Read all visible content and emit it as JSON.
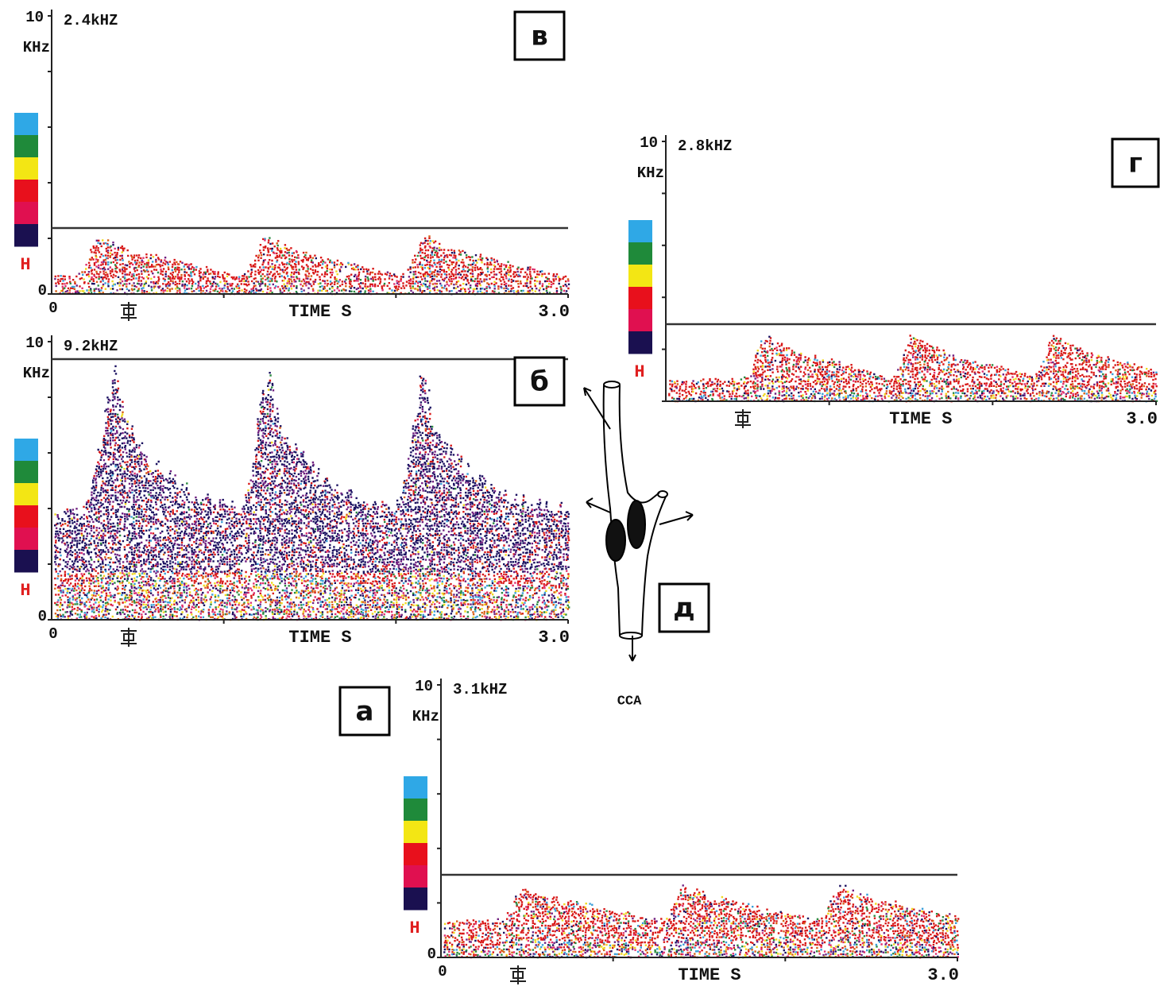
{
  "panels": [
    {
      "label": "в",
      "ymax": "10",
      "yunit": "KHz",
      "reading": "2.4kHZ",
      "ymin": "0",
      "xmin": "0",
      "xlabel": "TIME S",
      "xmax": "3.0",
      "scale_mark": "H"
    },
    {
      "label": "б",
      "ymax": "10",
      "yunit": "KHz",
      "reading": "9.2kHZ",
      "ymin": "0",
      "xmin": "0",
      "xlabel": "TIME S",
      "xmax": "3.0",
      "scale_mark": "H"
    },
    {
      "label": "г",
      "ymax": "10",
      "yunit": "KHz",
      "reading": "2.8kHZ",
      "xlabel": "TIME S",
      "xmax": "3.0",
      "scale_mark": "H"
    },
    {
      "label": "а",
      "ymax": "10",
      "yunit": "KHz",
      "reading": "3.1kHZ",
      "ymin": "0",
      "xmin": "0",
      "xlabel": "TIME S",
      "xmax": "3.0",
      "scale_mark": "H"
    }
  ],
  "diagram": {
    "label": "д",
    "vessel": "CCA"
  }
}
